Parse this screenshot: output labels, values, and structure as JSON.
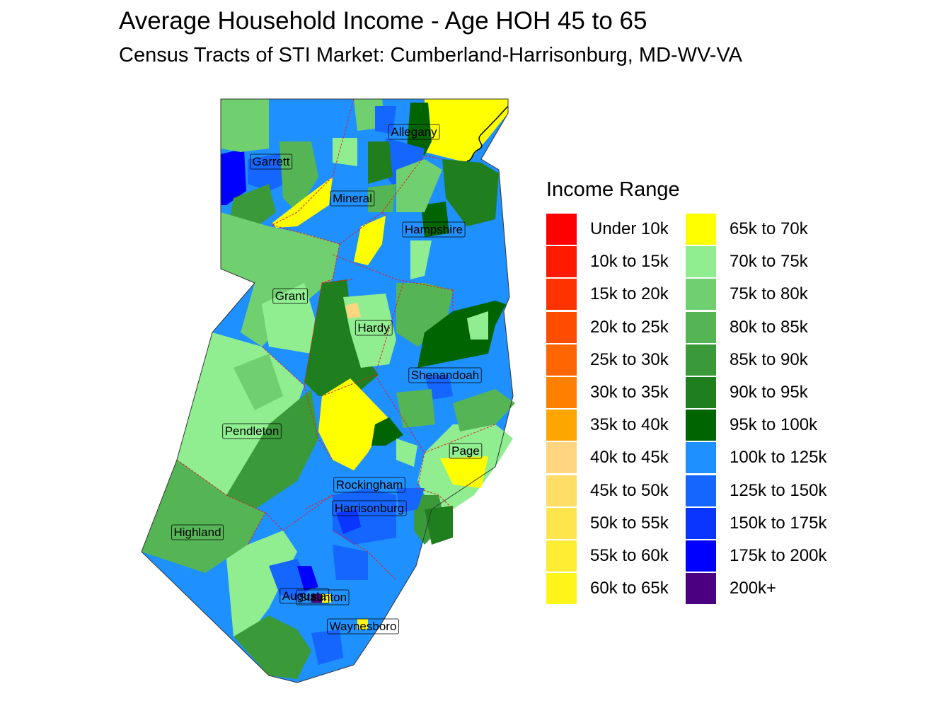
{
  "title": "Average Household Income - Age HOH 45 to 65",
  "subtitle": "Census Tracts of STI Market: Cumberland-Harrisonburg, MD-WV-VA",
  "legend": {
    "title": "Income Range",
    "items": [
      {
        "label": "Under 10k",
        "color": "#FF0000"
      },
      {
        "label": "10k to 15k",
        "color": "#FF1A00"
      },
      {
        "label": "15k to 20k",
        "color": "#FF3300"
      },
      {
        "label": "20k to 25k",
        "color": "#FF4D00"
      },
      {
        "label": "25k to 30k",
        "color": "#FF6600"
      },
      {
        "label": "30k to 35k",
        "color": "#FF8000"
      },
      {
        "label": "35k to 40k",
        "color": "#FFA500"
      },
      {
        "label": "40k to 45k",
        "color": "#FFD580"
      },
      {
        "label": "45k to 50k",
        "color": "#FFDD66"
      },
      {
        "label": "50k to 55k",
        "color": "#FFE54D"
      },
      {
        "label": "55k to 60k",
        "color": "#FFED33"
      },
      {
        "label": "60k to 65k",
        "color": "#FFF51A"
      },
      {
        "label": "65k to 70k",
        "color": "#FFFF00"
      },
      {
        "label": "70k to 75k",
        "color": "#90EE90"
      },
      {
        "label": "75k to 80k",
        "color": "#70D070"
      },
      {
        "label": "80k to 85k",
        "color": "#55B555"
      },
      {
        "label": "85k to 90k",
        "color": "#3A9A3A"
      },
      {
        "label": "90k to 95k",
        "color": "#1F7F1F"
      },
      {
        "label": "95k to 100k",
        "color": "#006400"
      },
      {
        "label": "100k to 125k",
        "color": "#1E90FF"
      },
      {
        "label": "125k to 150k",
        "color": "#1565FF"
      },
      {
        "label": "150k to 175k",
        "color": "#0A35FF"
      },
      {
        "label": "175k to 200k",
        "color": "#0000FF"
      },
      {
        "label": "200k+",
        "color": "#4B0082"
      }
    ]
  },
  "counties": [
    {
      "name": "Allegany"
    },
    {
      "name": "Garrett"
    },
    {
      "name": "Mineral"
    },
    {
      "name": "Hampshire"
    },
    {
      "name": "Grant"
    },
    {
      "name": "Hardy"
    },
    {
      "name": "Shenandoah"
    },
    {
      "name": "Pendleton"
    },
    {
      "name": "Page"
    },
    {
      "name": "Rockingham"
    },
    {
      "name": "Harrisonburg"
    },
    {
      "name": "Highland"
    },
    {
      "name": "Augusta"
    },
    {
      "name": "Staunton"
    },
    {
      "name": "Waynesboro"
    }
  ]
}
